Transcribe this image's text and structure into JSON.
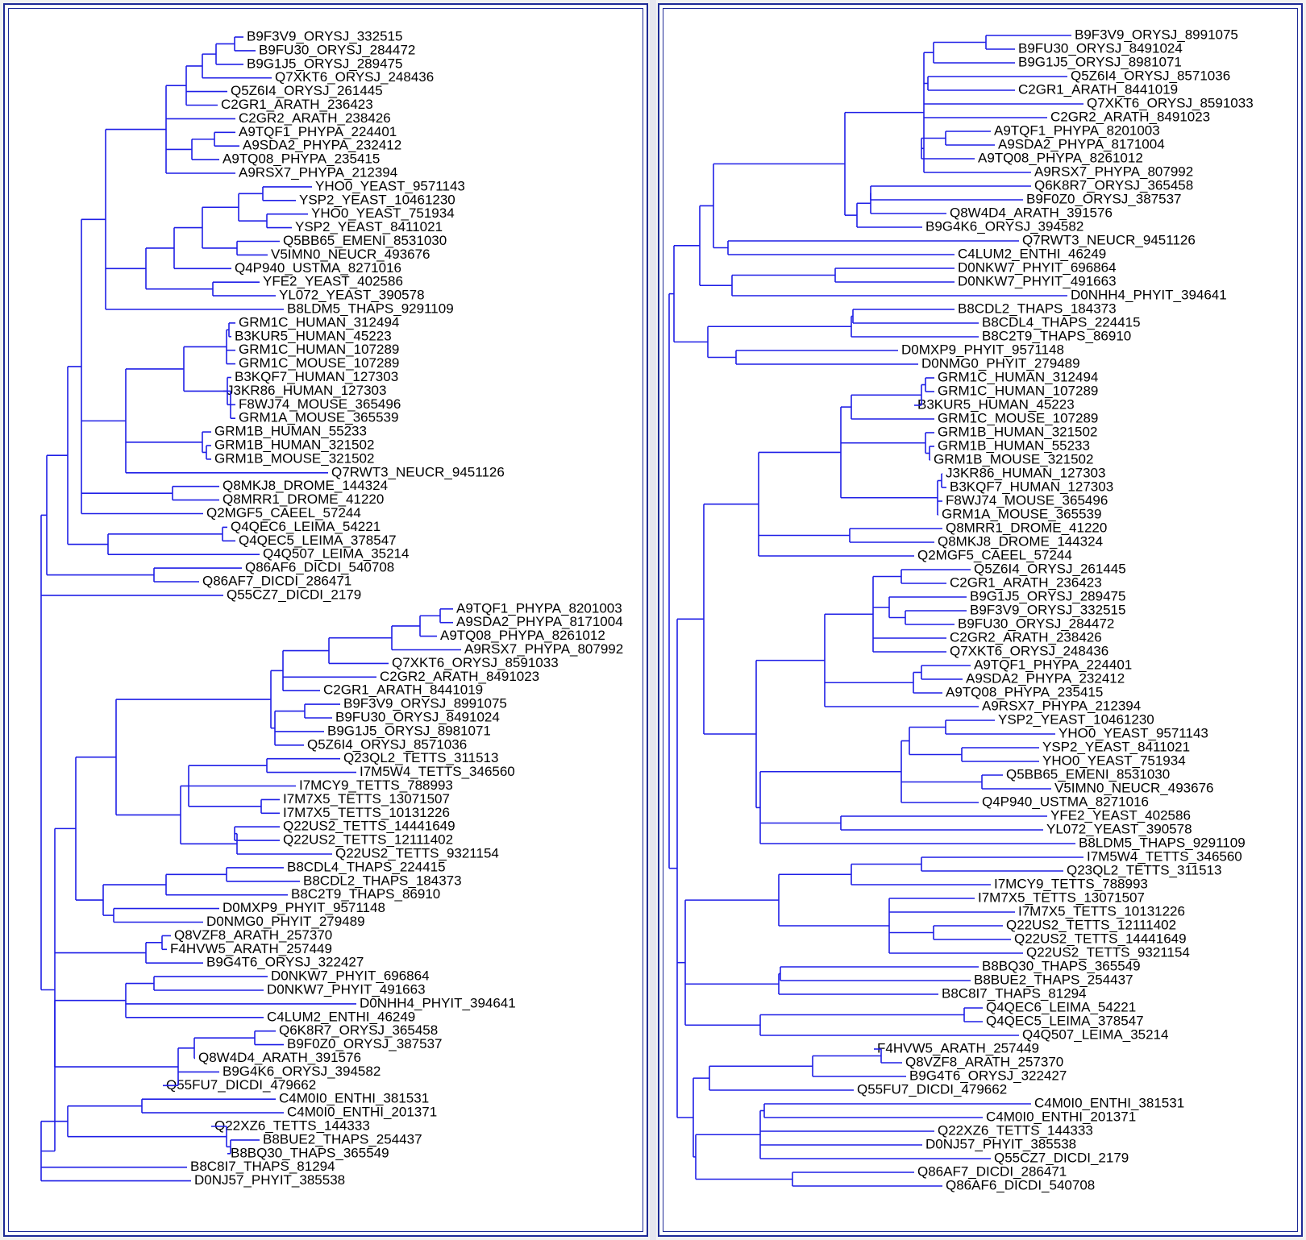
{
  "colors": {
    "branch": "#1f1fe6",
    "frame": "#1e2a96",
    "text": "#000000"
  },
  "trees": {
    "left": {
      "leaves": [
        "B9F3V9_ORYSJ_332515",
        "B9FU30_ORYSJ_284472",
        "B9G1J5_ORYSJ_289475",
        "Q7XKT6_ORYSJ_248436",
        "Q5Z6I4_ORYSJ_261445",
        "C2GR1_ARATH_236423",
        "C2GR2_ARATH_238426",
        "A9TQF1_PHYPA_224401",
        "A9SDA2_PHYPA_232412",
        "A9TQ08_PHYPA_235415",
        "A9RSX7_PHYPA_212394",
        "YHO0_YEAST_9571143",
        "YSP2_YEAST_10461230",
        "YHO0_YEAST_751934",
        "YSP2_YEAST_8411021",
        "Q5BB65_EMENI_8531030",
        "V5IMN0_NEUCR_493676",
        "Q4P940_USTMA_8271016",
        "YFE2_YEAST_402586",
        "YL072_YEAST_390578",
        "B8LDM5_THAPS_9291109",
        "GRM1C_HUMAN_312494",
        "B3KUR5_HUMAN_45223",
        "GRM1C_HUMAN_107289",
        "GRM1C_MOUSE_107289",
        "B3KQF7_HUMAN_127303",
        "J3KR86_HUMAN_127303",
        "F8WJ74_MOUSE_365496",
        "GRM1A_MOUSE_365539",
        "GRM1B_HUMAN_55233",
        "GRM1B_HUMAN_321502",
        "GRM1B_MOUSE_321502",
        "Q7RWT3_NEUCR_9451126",
        "Q8MKJ8_DROME_144324",
        "Q8MRR1_DROME_41220",
        "Q2MGF5_CAEEL_57244",
        "Q4QEC6_LEIMA_54221",
        "Q4QEC5_LEIMA_378547",
        "Q4Q507_LEIMA_35214",
        "Q86AF6_DICDI_540708",
        "Q86AF7_DICDI_286471",
        "Q55CZ7_DICDI_2179",
        "A9TQF1_PHYPA_8201003",
        "A9SDA2_PHYPA_8171004",
        "A9TQ08_PHYPA_8261012",
        "A9RSX7_PHYPA_807992",
        "Q7XKT6_ORYSJ_8591033",
        "C2GR2_ARATH_8491023",
        "C2GR1_ARATH_8441019",
        "B9F3V9_ORYSJ_8991075",
        "B9FU30_ORYSJ_8491024",
        "B9G1J5_ORYSJ_8981071",
        "Q5Z6I4_ORYSJ_8571036",
        "Q23QL2_TETTS_311513",
        "I7M5W4_TETTS_346560",
        "I7MCY9_TETTS_788993",
        "I7M7X5_TETTS_13071507",
        "I7M7X5_TETTS_10131226",
        "Q22US2_TETTS_14441649",
        "Q22US2_TETTS_12111402",
        "Q22US2_TETTS_9321154",
        "B8CDL4_THAPS_224415",
        "B8CDL2_THAPS_184373",
        "B8C2T9_THAPS_86910",
        "D0MXP9_PHYIT_9571148",
        "D0NMG0_PHYIT_279489",
        "Q8VZF8_ARATH_257370",
        "F4HVW5_ARATH_257449",
        "B9G4T6_ORYSJ_322427",
        "D0NKW7_PHYIT_696864",
        "D0NKW7_PHYIT_491663",
        "D0NHH4_PHYIT_394641",
        "C4LUM2_ENTHI_46249",
        "Q6K8R7_ORYSJ_365458",
        "B9F0Z0_ORYSJ_387537",
        "Q8W4D4_ARATH_391576",
        "B9G4K6_ORYSJ_394582",
        "Q55FU7_DICDI_479662",
        "C4M0I0_ENTHI_381531",
        "C4M0I0_ENTHI_201371",
        "Q22XZ6_TETTS_144333",
        "B8BUE2_THAPS_254437",
        "B8BQ30_THAPS_365549",
        "B8C8I7_THAPS_81294",
        "D0NJ57_PHYIT_385538"
      ]
    },
    "right": {
      "leaves": [
        "B9F3V9_ORYSJ_8991075",
        "B9FU30_ORYSJ_8491024",
        "B9G1J5_ORYSJ_8981071",
        "Q5Z6I4_ORYSJ_8571036",
        "C2GR1_ARATH_8441019",
        "Q7XKT6_ORYSJ_8591033",
        "C2GR2_ARATH_8491023",
        "A9TQF1_PHYPA_8201003",
        "A9SDA2_PHYPA_8171004",
        "A9TQ08_PHYPA_8261012",
        "A9RSX7_PHYPA_807992",
        "Q6K8R7_ORYSJ_365458",
        "B9F0Z0_ORYSJ_387537",
        "Q8W4D4_ARATH_391576",
        "B9G4K6_ORYSJ_394582",
        "Q7RWT3_NEUCR_9451126",
        "C4LUM2_ENTHI_46249",
        "D0NKW7_PHYIT_696864",
        "D0NKW7_PHYIT_491663",
        "D0NHH4_PHYIT_394641",
        "B8CDL2_THAPS_184373",
        "B8CDL4_THAPS_224415",
        "B8C2T9_THAPS_86910",
        "D0MXP9_PHYIT_9571148",
        "D0NMG0_PHYIT_279489",
        "GRM1C_HUMAN_312494",
        "GRM1C_HUMAN_107289",
        "B3KUR5_HUMAN_45223",
        "GRM1C_MOUSE_107289",
        "GRM1B_HUMAN_321502",
        "GRM1B_HUMAN_55233",
        "GRM1B_MOUSE_321502",
        "J3KR86_HUMAN_127303",
        "B3KQF7_HUMAN_127303",
        "F8WJ74_MOUSE_365496",
        "GRM1A_MOUSE_365539",
        "Q8MRR1_DROME_41220",
        "Q8MKJ8_DROME_144324",
        "Q2MGF5_CAEEL_57244",
        "Q5Z6I4_ORYSJ_261445",
        "C2GR1_ARATH_236423",
        "B9G1J5_ORYSJ_289475",
        "B9F3V9_ORYSJ_332515",
        "B9FU30_ORYSJ_284472",
        "C2GR2_ARATH_238426",
        "Q7XKT6_ORYSJ_248436",
        "A9TQF1_PHYPA_224401",
        "A9SDA2_PHYPA_232412",
        "A9TQ08_PHYPA_235415",
        "A9RSX7_PHYPA_212394",
        "YSP2_YEAST_10461230",
        "YHO0_YEAST_9571143",
        "YSP2_YEAST_8411021",
        "YHO0_YEAST_751934",
        "Q5BB65_EMENI_8531030",
        "V5IMN0_NEUCR_493676",
        "Q4P940_USTMA_8271016",
        "YFE2_YEAST_402586",
        "YL072_YEAST_390578",
        "B8LDM5_THAPS_9291109",
        "I7M5W4_TETTS_346560",
        "Q23QL2_TETTS_311513",
        "I7MCY9_TETTS_788993",
        "I7M7X5_TETTS_13071507",
        "I7M7X5_TETTS_10131226",
        "Q22US2_TETTS_12111402",
        "Q22US2_TETTS_14441649",
        "Q22US2_TETTS_9321154",
        "B8BQ30_THAPS_365549",
        "B8BUE2_THAPS_254437",
        "B8C8I7_THAPS_81294",
        "Q4QEC6_LEIMA_54221",
        "Q4QEC5_LEIMA_378547",
        "Q4Q507_LEIMA_35214",
        "F4HVW5_ARATH_257449",
        "Q8VZF8_ARATH_257370",
        "B9G4T6_ORYSJ_322427",
        "Q55FU7_DICDI_479662",
        "C4M0I0_ENTHI_381531",
        "C4M0I0_ENTHI_201371",
        "Q22XZ6_TETTS_144333",
        "D0NJ57_PHYIT_385538",
        "Q55CZ7_DICDI_2179",
        "Q86AF7_DICDI_286471",
        "Q86AF6_DICDI_540708"
      ]
    }
  }
}
